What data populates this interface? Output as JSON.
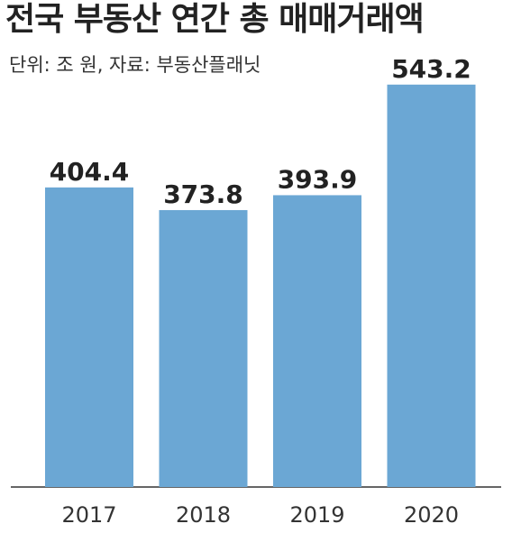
{
  "header": {
    "title": "전국 부동산 연간 총 매매거래액",
    "subtitle": "단위: 조 원, 자료: 부동산플래닛"
  },
  "colors": {
    "bar": "#6ba7d4",
    "baseline": "#333333",
    "text": "#222222"
  },
  "chart_data": {
    "type": "bar",
    "title": "전국 부동산 연간 총 매매거래액",
    "subtitle": "단위: 조 원, 자료: 부동산플래닛",
    "categories": [
      "2017",
      "2018",
      "2019",
      "2020"
    ],
    "values": [
      404.4,
      373.8,
      393.9,
      543.2
    ],
    "value_labels": [
      "404.4",
      "373.8",
      "393.9",
      "543.2"
    ],
    "xlabel": "",
    "ylabel": "",
    "ylim": [
      0,
      560
    ],
    "grid": false,
    "legend": "none"
  }
}
